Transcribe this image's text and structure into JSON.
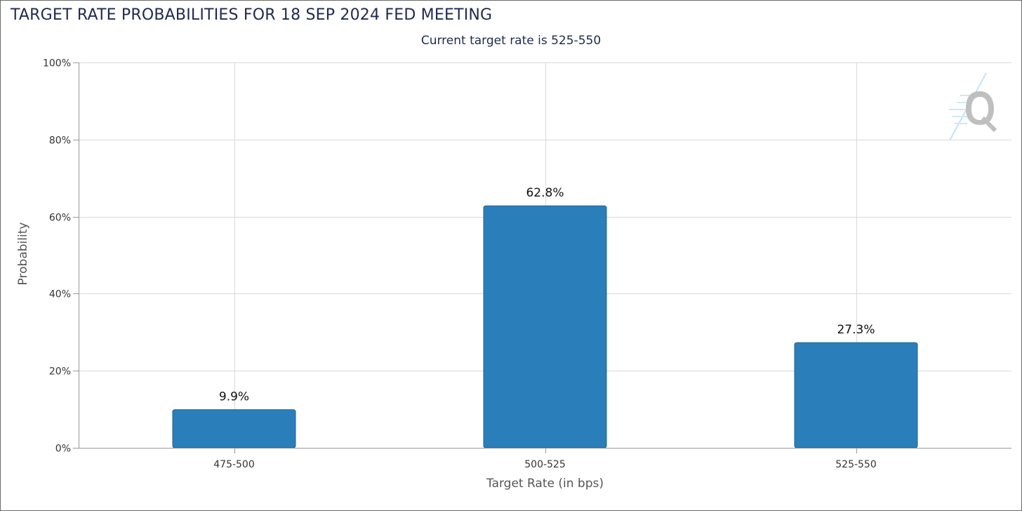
{
  "header": {
    "title": "TARGET RATE PROBABILITIES FOR 18 SEP 2024 FED MEETING",
    "subtitle": "Current target rate is 525-550"
  },
  "watermark": {
    "icon": "q-logo-icon"
  },
  "colors": {
    "bar": "#2a7fba",
    "bar_border": "#1f6396",
    "grid": "#d9d9d9",
    "axis": "#999999",
    "title": "#1f2a4d"
  },
  "chart_data": {
    "type": "bar",
    "title": "TARGET RATE PROBABILITIES FOR 18 SEP 2024 FED MEETING",
    "subtitle": "Current target rate is 525-550",
    "categories": [
      "475-500",
      "500-525",
      "525-550"
    ],
    "values": [
      9.9,
      62.8,
      27.3
    ],
    "data_labels": [
      "9.9%",
      "62.8%",
      "27.3%"
    ],
    "xlabel": "Target Rate (in bps)",
    "ylabel": "Probability",
    "ylim": [
      0,
      100
    ],
    "yticks": [
      0,
      20,
      40,
      60,
      80,
      100
    ],
    "ytick_labels": [
      "0%",
      "20%",
      "40%",
      "60%",
      "80%",
      "100%"
    ],
    "grid": true,
    "legend": "none"
  }
}
